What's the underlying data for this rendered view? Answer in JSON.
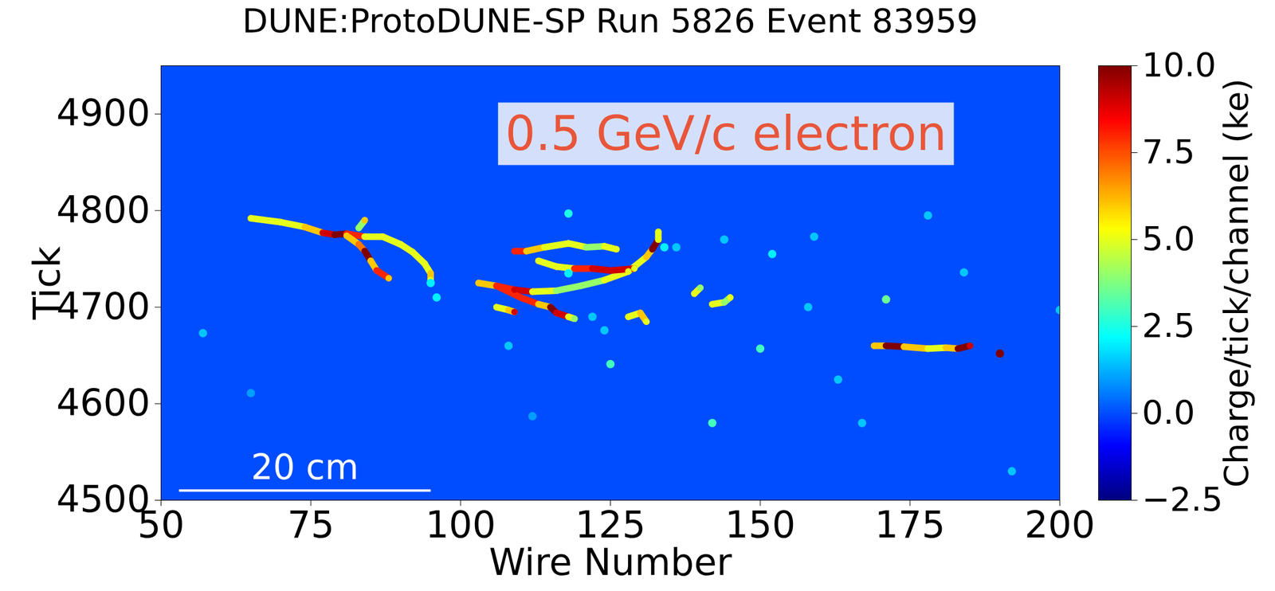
{
  "chart_data": {
    "type": "event_display",
    "title": "DUNE:ProtoDUNE-SP Run 5826 Event 83959",
    "x_label": "Wire Number",
    "y_label": "Tick",
    "xlim": [
      50,
      200
    ],
    "xticks": [
      50,
      75,
      100,
      125,
      150,
      175,
      200
    ],
    "ylim": [
      4500,
      4950
    ],
    "yticks": [
      4500,
      4600,
      4700,
      4800,
      4900
    ],
    "annotations": [
      "0.5 GeV/c electron"
    ],
    "scale_bar": {
      "label": "20 cm",
      "x": [
        53,
        95
      ],
      "y": 4510
    },
    "colorbar": {
      "label": "Charge/tick/channel (ke)",
      "range": [
        -2.5,
        10
      ],
      "ticks": [
        {
          "value": -2.5,
          "label": "−2.5"
        },
        {
          "value": 0,
          "label": "0.0"
        },
        {
          "value": 2.5,
          "label": "2.5"
        },
        {
          "value": 5,
          "label": "5.0"
        },
        {
          "value": 7.5,
          "label": "7.5"
        },
        {
          "value": 10,
          "label": "10.0"
        }
      ]
    },
    "background": 0,
    "tracks": [
      [
        [
          65,
          4792,
          5
        ],
        [
          70,
          4788,
          5
        ],
        [
          74,
          4783,
          6
        ],
        [
          77,
          4777,
          9
        ],
        [
          79,
          4775,
          11
        ],
        [
          81,
          4776,
          8
        ],
        [
          84,
          4773,
          5
        ],
        [
          87,
          4773,
          5
        ],
        [
          90,
          4765,
          5
        ],
        [
          92,
          4757,
          5
        ],
        [
          94,
          4745,
          5
        ],
        [
          95,
          4735,
          6
        ],
        [
          95,
          4728,
          5
        ]
      ],
      [
        [
          81,
          4774,
          6
        ],
        [
          83,
          4765,
          7
        ],
        [
          84,
          4758,
          10
        ],
        [
          85,
          4748,
          6
        ],
        [
          86,
          4738,
          8
        ],
        [
          88,
          4730,
          6
        ]
      ],
      [
        [
          83,
          4782,
          4
        ],
        [
          84,
          4790,
          6
        ]
      ],
      [
        [
          103,
          4725,
          6
        ],
        [
          106,
          4722,
          8
        ],
        [
          109,
          4718,
          9
        ],
        [
          112,
          4716,
          5
        ],
        [
          116,
          4717,
          4
        ],
        [
          120,
          4722,
          4
        ],
        [
          124,
          4728,
          5
        ],
        [
          128,
          4737,
          5
        ],
        [
          131,
          4752,
          6
        ],
        [
          132,
          4760,
          10
        ],
        [
          133,
          4770,
          5
        ],
        [
          133,
          4778,
          5
        ]
      ],
      [
        [
          106,
          4722,
          8
        ],
        [
          110,
          4710,
          8
        ],
        [
          113,
          4703,
          6
        ],
        [
          115,
          4700,
          10
        ],
        [
          116,
          4694,
          9
        ],
        [
          118,
          4690,
          5
        ],
        [
          119,
          4688,
          4
        ]
      ],
      [
        [
          106,
          4700,
          5
        ],
        [
          108,
          4697,
          6
        ],
        [
          109,
          4695,
          9
        ]
      ],
      [
        [
          109,
          4758,
          8
        ],
        [
          111,
          4758,
          6
        ],
        [
          114,
          4762,
          5
        ],
        [
          118,
          4766,
          5
        ],
        [
          121,
          4762,
          4
        ],
        [
          124,
          4763,
          5
        ],
        [
          126,
          4760,
          5
        ]
      ],
      [
        [
          113,
          4748,
          5
        ],
        [
          116,
          4742,
          5
        ],
        [
          119,
          4740,
          8
        ],
        [
          122,
          4740,
          9
        ],
        [
          125,
          4738,
          9
        ],
        [
          129,
          4740,
          5
        ]
      ],
      [
        [
          128,
          4690,
          5
        ],
        [
          130,
          4694,
          6
        ],
        [
          131,
          4685,
          5
        ]
      ],
      [
        [
          139,
          4714,
          5
        ],
        [
          140,
          4720,
          4
        ]
      ],
      [
        [
          142,
          4703,
          5
        ],
        [
          144,
          4705,
          4
        ],
        [
          145,
          4710,
          5
        ]
      ],
      [
        [
          169,
          4660,
          6
        ],
        [
          171,
          4660,
          12
        ],
        [
          174,
          4659,
          6
        ],
        [
          178,
          4657,
          5
        ],
        [
          181,
          4658,
          6
        ],
        [
          183,
          4657,
          12
        ],
        [
          185,
          4660,
          9
        ]
      ]
    ],
    "deposits": [
      [
        190,
        4652,
        10
      ],
      [
        171,
        4708,
        3.5
      ],
      [
        150,
        4657,
        3
      ],
      [
        142,
        4580,
        3
      ],
      [
        125,
        4641,
        3
      ],
      [
        152,
        4755,
        2
      ],
      [
        159,
        4773,
        1.5
      ],
      [
        144,
        4770,
        1.5
      ],
      [
        134,
        4762,
        2
      ],
      [
        118,
        4735,
        2
      ],
      [
        122,
        4690,
        1.5
      ],
      [
        124,
        4676,
        1.5
      ],
      [
        158,
        4700,
        1.5
      ],
      [
        167,
        4580,
        1.5
      ],
      [
        178,
        4795,
        1.5
      ],
      [
        184,
        4736,
        1.5
      ],
      [
        163,
        4625,
        1.5
      ],
      [
        118,
        4797,
        2.5
      ],
      [
        96,
        4710,
        2
      ],
      [
        57,
        4673,
        1.5
      ],
      [
        65,
        4611,
        1
      ],
      [
        112,
        4587,
        1
      ],
      [
        108,
        4660,
        1.5
      ],
      [
        200,
        4697,
        1.5
      ],
      [
        192,
        4530,
        1.5
      ],
      [
        136,
        4762,
        1.5
      ],
      [
        95,
        4725,
        2
      ]
    ]
  }
}
